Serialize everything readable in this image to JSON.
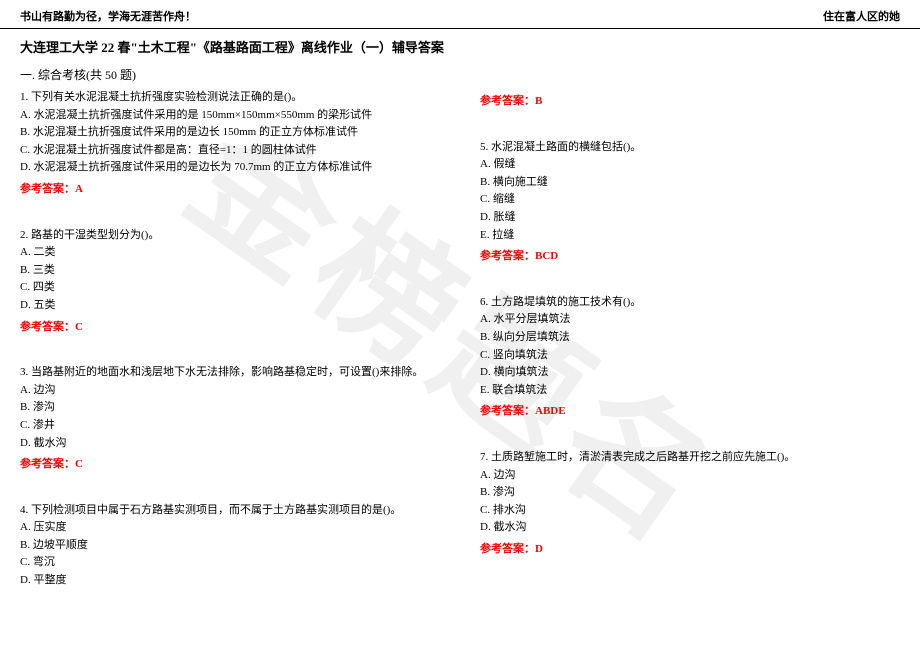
{
  "header": {
    "left": "书山有路勤为径，学海无涯苦作舟！",
    "right": "住在富人区的她"
  },
  "title": "大连理工大学 22 春\"土木工程\"《路基路面工程》离线作业（一）辅导答案",
  "section": "一. 综合考核(共 50 题)",
  "watermark": "金榜题名",
  "questions_left": [
    {
      "text": "1. 下列有关水泥混凝土抗折强度实验检测说法正确的是()。",
      "options": [
        "A. 水泥混凝土抗折强度试件采用的是 150mm×150mm×550mm 的梁形试件",
        "B. 水泥混凝土抗折强度试件采用的是边长 150mm 的正立方体标准试件",
        "C. 水泥混凝土抗折强度试件都是高：直径=1：1 的圆柱体试件",
        "D. 水泥混凝土抗折强度试件采用的是边长为 70.7mm 的正立方体标准试件"
      ],
      "answer": "参考答案：A"
    },
    {
      "text": "2. 路基的干湿类型划分为()。",
      "options": [
        "A. 二类",
        "B. 三类",
        "C. 四类",
        "D. 五类"
      ],
      "answer": "参考答案：C"
    },
    {
      "text": "3. 当路基附近的地面水和浅层地下水无法排除，影响路基稳定时，可设置()来排除。",
      "options": [
        "A. 边沟",
        "B. 渗沟",
        "C. 渗井",
        "D. 截水沟"
      ],
      "answer": "参考答案：C"
    },
    {
      "text": "4. 下列检测项目中属于石方路基实测项目，而不属于土方路基实测项目的是()。",
      "options": [
        "A. 压实度",
        "B. 边坡平顺度",
        "C. 弯沉",
        "D. 平整度"
      ],
      "answer": ""
    }
  ],
  "questions_right": [
    {
      "text": "",
      "options": [],
      "answer": "参考答案：B"
    },
    {
      "text": "5. 水泥混凝土路面的横缝包括()。",
      "options": [
        "A. 假缝",
        "B. 横向施工缝",
        "C. 缩缝",
        "D. 胀缝",
        "E. 拉缝"
      ],
      "answer": "参考答案：BCD"
    },
    {
      "text": "6. 土方路堤填筑的施工技术有()。",
      "options": [
        "A. 水平分层填筑法",
        "B. 纵向分层填筑法",
        "C. 竖向填筑法",
        "D. 横向填筑法",
        "E. 联合填筑法"
      ],
      "answer": "参考答案：ABDE"
    },
    {
      "text": "7. 土质路堑施工时，清淤清表完成之后路基开挖之前应先施工()。",
      "options": [
        "A. 边沟",
        "B. 渗沟",
        "C. 排水沟",
        "D. 截水沟"
      ],
      "answer": "参考答案：D"
    }
  ]
}
